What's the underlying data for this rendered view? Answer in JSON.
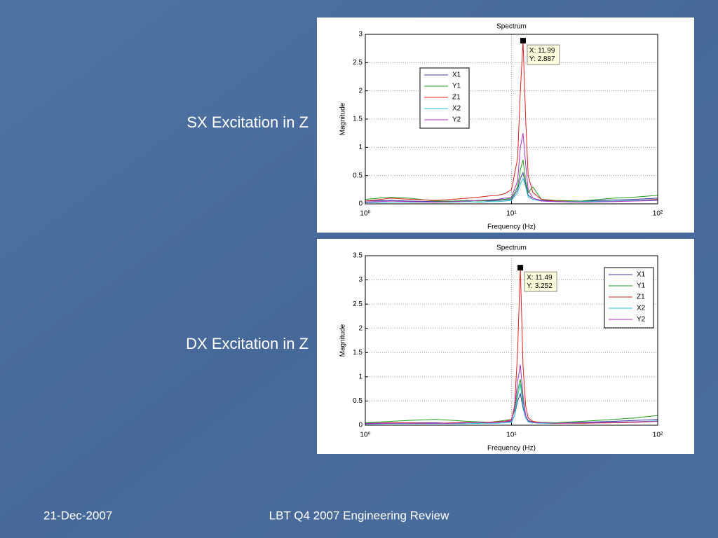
{
  "side_labels": [
    "SX Excitation in Z",
    "DX Excitation in Z"
  ],
  "footer": {
    "date": "21-Dec-2007",
    "title": "LBT Q4 2007 Engineering Review"
  },
  "chart_data": [
    {
      "type": "line",
      "title": "Spectrum",
      "x_label": "Frequency (Hz)",
      "y_label": "Magnitude",
      "xscale": "log",
      "grid": true,
      "legend": "upper left",
      "xlim": [
        1,
        100
      ],
      "xticks": [
        {
          "value": 1,
          "label": "10⁰"
        },
        {
          "value": 10,
          "label": "10¹"
        },
        {
          "value": 100,
          "label": "10²"
        }
      ],
      "ylim": [
        0,
        3
      ],
      "yticks": [
        0,
        0.5,
        1,
        1.5,
        2,
        2.5,
        3
      ],
      "x": [
        1,
        1.5,
        2,
        3,
        4,
        5,
        6,
        7,
        8,
        9,
        10,
        11,
        11.5,
        11.99,
        12.5,
        13,
        14,
        16,
        20,
        30,
        50,
        70,
        100
      ],
      "series": [
        {
          "name": "X1",
          "color": "#3b3b9e",
          "values": [
            0.05,
            0.06,
            0.05,
            0.04,
            0.05,
            0.05,
            0.06,
            0.05,
            0.06,
            0.07,
            0.08,
            0.25,
            0.45,
            0.55,
            0.35,
            0.15,
            0.1,
            0.06,
            0.05,
            0.05,
            0.07,
            0.08,
            0.1
          ]
        },
        {
          "name": "Y1",
          "color": "#1e9e1e",
          "values": [
            0.08,
            0.12,
            0.1,
            0.05,
            0.05,
            0.06,
            0.05,
            0.06,
            0.07,
            0.08,
            0.1,
            0.3,
            0.6,
            0.78,
            0.4,
            0.2,
            0.3,
            0.08,
            0.06,
            0.05,
            0.1,
            0.12,
            0.15
          ]
        },
        {
          "name": "Z1",
          "color": "#e02020",
          "values": [
            0.05,
            0.1,
            0.08,
            0.06,
            0.08,
            0.1,
            0.12,
            0.14,
            0.15,
            0.18,
            0.25,
            0.8,
            2.0,
            2.887,
            1.5,
            0.5,
            0.2,
            0.08,
            0.05,
            0.04,
            0.05,
            0.06,
            0.08
          ]
        },
        {
          "name": "X2",
          "color": "#25c0d0",
          "values": [
            0.02,
            0.03,
            0.03,
            0.03,
            0.03,
            0.04,
            0.03,
            0.04,
            0.04,
            0.05,
            0.06,
            0.2,
            0.35,
            0.45,
            0.3,
            0.12,
            0.08,
            0.05,
            0.04,
            0.04,
            0.05,
            0.06,
            0.07
          ]
        },
        {
          "name": "Y2",
          "color": "#b030c0",
          "values": [
            0.03,
            0.05,
            0.04,
            0.03,
            0.04,
            0.05,
            0.06,
            0.07,
            0.08,
            0.1,
            0.12,
            0.4,
            1.0,
            1.25,
            0.7,
            0.25,
            0.1,
            0.05,
            0.04,
            0.03,
            0.04,
            0.05,
            0.06
          ]
        }
      ],
      "datatip": {
        "x": 11.99,
        "y": 2.887,
        "labels": [
          "X: 11.99",
          "Y: 2.887"
        ]
      }
    },
    {
      "type": "line",
      "title": "Spectrum",
      "x_label": "Frequency (Hz)",
      "y_label": "Magnitude",
      "xscale": "log",
      "grid": true,
      "legend": "upper right",
      "xlim": [
        1,
        100
      ],
      "xticks": [
        {
          "value": 1,
          "label": "10⁰"
        },
        {
          "value": 10,
          "label": "10¹"
        },
        {
          "value": 100,
          "label": "10²"
        }
      ],
      "ylim": [
        0,
        3.5
      ],
      "yticks": [
        0,
        0.5,
        1,
        1.5,
        2,
        2.5,
        3,
        3.5
      ],
      "x": [
        1,
        1.5,
        2,
        3,
        4,
        5,
        6,
        7,
        8,
        9,
        10,
        10.5,
        11,
        11.49,
        12,
        12.5,
        13,
        14,
        16,
        20,
        30,
        50,
        70,
        100
      ],
      "series": [
        {
          "name": "X1",
          "color": "#3b3b9e",
          "values": [
            0.04,
            0.05,
            0.05,
            0.05,
            0.04,
            0.05,
            0.05,
            0.05,
            0.06,
            0.07,
            0.08,
            0.2,
            0.5,
            0.65,
            0.35,
            0.15,
            0.08,
            0.06,
            0.05,
            0.05,
            0.06,
            0.08,
            0.1,
            0.12
          ]
        },
        {
          "name": "Y1",
          "color": "#1e9e1e",
          "values": [
            0.05,
            0.08,
            0.1,
            0.12,
            0.1,
            0.08,
            0.07,
            0.06,
            0.08,
            0.1,
            0.12,
            0.3,
            0.7,
            0.95,
            0.5,
            0.2,
            0.1,
            0.07,
            0.06,
            0.05,
            0.08,
            0.12,
            0.15,
            0.2
          ]
        },
        {
          "name": "Z1",
          "color": "#e02020",
          "values": [
            0.03,
            0.05,
            0.05,
            0.04,
            0.05,
            0.06,
            0.05,
            0.06,
            0.07,
            0.08,
            0.12,
            0.4,
            1.5,
            3.252,
            1.2,
            0.4,
            0.15,
            0.08,
            0.05,
            0.04,
            0.04,
            0.05,
            0.06,
            0.08
          ]
        },
        {
          "name": "X2",
          "color": "#25c0d0",
          "values": [
            0.02,
            0.03,
            0.03,
            0.03,
            0.03,
            0.03,
            0.04,
            0.04,
            0.04,
            0.05,
            0.06,
            0.2,
            0.6,
            0.85,
            0.4,
            0.15,
            0.07,
            0.05,
            0.04,
            0.04,
            0.05,
            0.06,
            0.07,
            0.09
          ]
        },
        {
          "name": "Y2",
          "color": "#b030c0",
          "values": [
            0.03,
            0.04,
            0.04,
            0.04,
            0.04,
            0.05,
            0.05,
            0.05,
            0.06,
            0.07,
            0.1,
            0.35,
            0.9,
            1.25,
            0.6,
            0.2,
            0.1,
            0.06,
            0.05,
            0.04,
            0.05,
            0.06,
            0.07,
            0.08
          ]
        }
      ],
      "datatip": {
        "x": 11.49,
        "y": 3.252,
        "labels": [
          "X: 11.49",
          "Y: 3.252"
        ]
      }
    }
  ]
}
